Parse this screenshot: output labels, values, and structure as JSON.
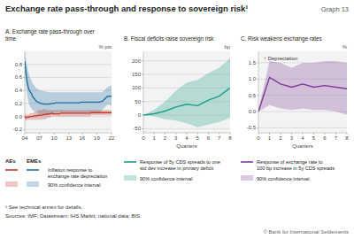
{
  "title": "Exchange rate pass-through and response to sovereign risk¹",
  "annotations": [
    "Graph 13",
    "¹ See technical annex for details.",
    "Sources: IMF; Datastream; IHS Markit; national data; BIS.",
    "© Bank for International Settlements"
  ],
  "chart_data": [
    {
      "type": "line",
      "title": "A. Exchange rate pass-through over\ntime",
      "y_label": "% pts",
      "line_label": "Inflation response to\nexchange rate depreciation",
      "band_label": "90% confidence interval",
      "categories": [
        "04",
        null,
        null,
        null,
        null,
        null,
        null,
        null,
        null,
        null,
        null,
        "07",
        null,
        null,
        null,
        null,
        null,
        null,
        null,
        null,
        null,
        null,
        "10",
        null,
        null,
        null,
        null,
        null,
        null,
        null,
        null,
        null,
        null,
        "13",
        null,
        null,
        null,
        null,
        null,
        null,
        null,
        null,
        null,
        "16",
        null,
        null,
        null,
        null,
        null,
        null,
        null,
        null,
        null,
        null,
        "19",
        null,
        null,
        null,
        null,
        null,
        null,
        null,
        null,
        null,
        null,
        "22"
      ],
      "series": [
        {
          "name": "EMEs",
          "color": "#2471a3",
          "values": [
            0.85,
            0.65,
            0.5,
            0.42,
            0.38,
            0.35,
            0.3,
            0.28,
            0.25,
            0.23,
            0.22,
            0.21,
            0.2,
            0.2,
            0.19,
            0.19,
            0.19,
            0.19,
            0.19,
            0.19,
            0.2,
            0.2,
            0.2,
            0.21,
            0.21,
            0.21,
            0.21,
            0.21,
            0.21,
            0.21,
            0.21,
            0.21,
            0.21,
            0.21,
            0.21,
            0.21,
            0.21,
            0.21,
            0.21,
            0.21,
            0.21,
            0.21,
            0.22,
            0.22,
            0.22,
            0.22,
            0.22,
            0.22,
            0.22,
            0.22,
            0.22,
            0.22,
            0.22,
            0.22,
            0.22,
            0.22,
            0.22,
            0.23,
            0.23,
            0.25,
            0.27,
            0.29,
            0.31,
            0.31,
            0.31,
            0.31
          ],
          "upper": [
            1.0,
            0.85,
            0.75,
            0.65,
            0.6,
            0.55,
            0.5,
            0.48,
            0.45,
            0.43,
            0.42,
            0.41,
            0.4,
            0.4,
            0.39,
            0.39,
            0.38,
            0.38,
            0.37,
            0.37,
            0.37,
            0.37,
            0.37,
            0.37,
            0.37,
            0.37,
            0.37,
            0.37,
            0.37,
            0.37,
            0.37,
            0.37,
            0.37,
            0.37,
            0.37,
            0.37,
            0.37,
            0.37,
            0.37,
            0.37,
            0.37,
            0.37,
            0.37,
            0.37,
            0.37,
            0.37,
            0.37,
            0.37,
            0.37,
            0.37,
            0.37,
            0.37,
            0.37,
            0.37,
            0.37,
            0.37,
            0.37,
            0.37,
            0.37,
            0.39,
            0.41,
            0.43,
            0.45,
            0.46,
            0.47,
            0.48
          ],
          "lower": [
            0.65,
            0.45,
            0.3,
            0.2,
            0.15,
            0.12,
            0.1,
            0.08,
            0.07,
            0.06,
            0.05,
            0.04,
            0.03,
            0.03,
            0.02,
            0.02,
            0.02,
            0.02,
            0.02,
            0.02,
            0.05,
            0.05,
            0.05,
            0.06,
            0.06,
            0.06,
            0.06,
            0.06,
            0.06,
            0.06,
            0.06,
            0.06,
            0.06,
            0.06,
            0.06,
            0.06,
            0.06,
            0.06,
            0.06,
            0.06,
            0.06,
            0.06,
            0.06,
            0.06,
            0.06,
            0.06,
            0.06,
            0.06,
            0.06,
            0.06,
            0.06,
            0.06,
            0.06,
            0.06,
            0.06,
            0.06,
            0.06,
            0.08,
            0.1,
            0.12,
            0.14,
            0.16,
            0.18,
            0.18,
            0.17,
            0.16
          ]
        },
        {
          "name": "AEs",
          "color": "#c0392b",
          "values": [
            0.0,
            -0.02,
            -0.01,
            -0.01,
            0.0,
            0.0,
            0.0,
            0.01,
            0.01,
            0.01,
            0.02,
            0.02,
            0.02,
            0.02,
            0.03,
            0.03,
            0.03,
            0.04,
            0.04,
            0.04,
            0.05,
            0.04,
            0.04,
            0.04,
            0.04,
            0.04,
            0.04,
            0.05,
            0.05,
            0.05,
            0.05,
            0.05,
            0.05,
            0.05,
            0.05,
            0.05,
            0.05,
            0.05,
            0.05,
            0.05,
            0.05,
            0.05,
            0.05,
            0.05,
            0.05,
            0.05,
            0.05,
            0.05,
            0.05,
            0.05,
            0.06,
            0.06,
            0.06,
            0.06,
            0.06,
            0.06,
            0.06,
            0.06,
            0.06,
            0.06,
            0.06,
            0.06,
            0.06,
            0.06,
            0.06,
            0.06
          ],
          "upper": [
            0.05,
            0.03,
            0.03,
            0.03,
            0.05,
            0.05,
            0.05,
            0.07,
            0.07,
            0.07,
            0.1,
            0.1,
            0.1,
            0.1,
            0.12,
            0.12,
            0.1,
            0.1,
            0.1,
            0.1,
            0.1,
            0.1,
            0.1,
            0.1,
            0.1,
            0.1,
            0.1,
            0.1,
            0.1,
            0.1,
            0.1,
            0.1,
            0.1,
            0.1,
            0.1,
            0.1,
            0.1,
            0.1,
            0.1,
            0.1,
            0.1,
            0.1,
            0.1,
            0.1,
            0.1,
            0.1,
            0.1,
            0.1,
            0.1,
            0.1,
            0.1,
            0.1,
            0.1,
            0.1,
            0.1,
            0.1,
            0.1,
            0.1,
            0.1,
            0.1,
            0.1,
            0.1,
            0.1,
            0.1,
            0.1,
            0.1
          ],
          "lower": [
            -0.05,
            -0.07,
            -0.05,
            -0.05,
            -0.05,
            -0.05,
            -0.05,
            -0.05,
            -0.05,
            -0.05,
            -0.05,
            -0.05,
            -0.05,
            -0.05,
            -0.04,
            -0.04,
            -0.04,
            -0.02,
            -0.02,
            -0.02,
            -0.0,
            -0.0,
            -0.0,
            -0.0,
            -0.0,
            -0.0,
            -0.0,
            -0.0,
            -0.0,
            -0.0,
            -0.0,
            -0.0,
            -0.0,
            -0.0,
            -0.0,
            -0.0,
            -0.0,
            -0.0,
            -0.0,
            -0.0,
            -0.0,
            -0.0,
            -0.0,
            -0.0,
            -0.0,
            -0.0,
            -0.0,
            -0.0,
            -0.0,
            -0.0,
            0.02,
            0.02,
            0.02,
            0.02,
            0.02,
            0.02,
            0.02,
            0.02,
            0.02,
            0.02,
            0.02,
            0.02,
            0.02,
            0.02,
            0.02,
            0.02
          ]
        }
      ],
      "ylim": [
        -0.25,
        1.0
      ],
      "yticks": [
        -0.2,
        {
          "value": 0.0,
          "label": "0.0"
        },
        0.2,
        0.4,
        0.6,
        0.8
      ],
      "grid": true
    },
    {
      "type": "line",
      "title": "B. Fiscal deficits raise sovereign risk",
      "y_label": "bp",
      "x_label": "Quarters",
      "band_label": "90% confidence interval",
      "x": [
        0,
        1,
        2,
        3,
        4,
        5,
        6,
        7,
        8
      ],
      "series": [
        {
          "name": "Response of 5y CDS spreads to one\nstd dev increase in primary deficit",
          "color": "#1a9e8a",
          "values": [
            0,
            5,
            15,
            30,
            40,
            35,
            55,
            70,
            100
          ],
          "upper": [
            0,
            20,
            50,
            90,
            120,
            130,
            155,
            175,
            210
          ],
          "lower": [
            0,
            -5,
            -15,
            -20,
            -30,
            -45,
            -35,
            -25,
            -10
          ]
        }
      ],
      "xlim": [
        0,
        8
      ],
      "xticks": [
        0,
        1,
        2,
        3,
        4,
        5,
        6,
        7,
        8
      ],
      "ylim": [
        -65,
        235
      ],
      "yticks": [
        -50,
        0,
        50,
        100,
        150,
        200
      ],
      "grid": true
    },
    {
      "type": "line",
      "title": "C. Risk weakens exchange rates",
      "y_label": "%",
      "x_label": "Quarters",
      "annotations": [
        "↑ Depreciation"
      ],
      "band_label": "90% confidence interval",
      "x": [
        0,
        1,
        2,
        3,
        4,
        5,
        6,
        7,
        8
      ],
      "series": [
        {
          "name": "Response of exchange rate to\n100 bp increase in 5y CDS spreads",
          "color": "#7d3c98",
          "values": [
            0.0,
            1.05,
            0.85,
            0.75,
            0.85,
            0.75,
            0.8,
            0.75,
            0.7
          ],
          "upper": [
            0.05,
            1.55,
            1.5,
            1.35,
            1.5,
            1.5,
            1.55,
            1.55,
            1.5
          ],
          "lower": [
            0.0,
            0.2,
            0.1,
            0.05,
            0.1,
            0.05,
            0.05,
            0.0,
            -0.1
          ]
        }
      ],
      "xlim": [
        0,
        8
      ],
      "xticks": [
        0,
        1,
        2,
        3,
        4,
        5,
        6,
        7,
        8
      ],
      "ylim": [
        -0.65,
        1.85
      ],
      "yticks": [
        -0.5,
        {
          "value": 0.0,
          "label": "0.0"
        },
        0.5,
        {
          "value": 1.0,
          "label": "1.0"
        },
        1.5
      ],
      "grid": true
    }
  ]
}
